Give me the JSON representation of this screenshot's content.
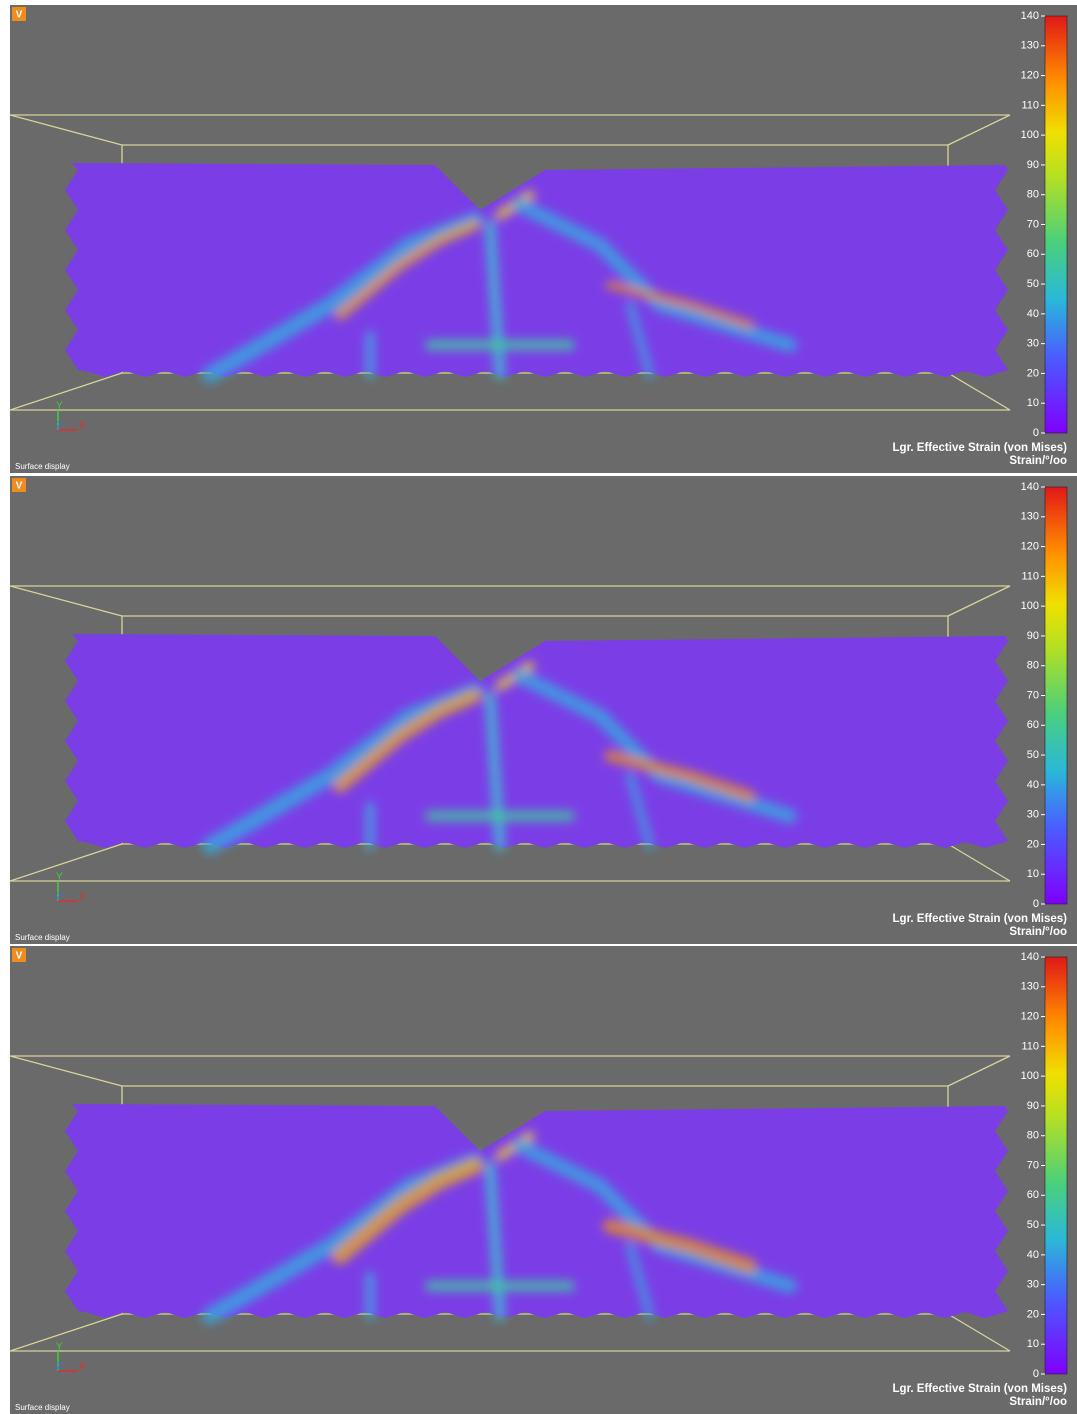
{
  "panels": [
    {
      "badge": "V",
      "colorbar": {
        "ticks": [
          0,
          10,
          20,
          30,
          40,
          50,
          60,
          70,
          80,
          90,
          100,
          110,
          120,
          130,
          140
        ],
        "title": "Lgr. Effective Strain (von Mises)",
        "unit": "Strain/°/oo"
      },
      "axes": {
        "y": "Y",
        "z": "Z",
        "x": "X"
      },
      "footer": "Surface display"
    },
    {
      "badge": "V",
      "colorbar": {
        "ticks": [
          0,
          10,
          20,
          30,
          40,
          50,
          60,
          70,
          80,
          90,
          100,
          110,
          120,
          130,
          140
        ],
        "title": "Lgr. Effective Strain (von Mises)",
        "unit": "Strain/°/oo"
      },
      "axes": {
        "y": "Y",
        "z": "Z",
        "x": "X"
      },
      "footer": "Surface display"
    },
    {
      "badge": "V",
      "colorbar": {
        "ticks": [
          0,
          10,
          20,
          30,
          40,
          50,
          60,
          70,
          80,
          90,
          100,
          110,
          120,
          130,
          140
        ],
        "title": "Lgr. Effective Strain (von Mises)",
        "unit": "Strain/°/oo"
      },
      "axes": {
        "y": "Y",
        "z": "Z",
        "x": "X"
      },
      "footer": "Surface display"
    }
  ]
}
